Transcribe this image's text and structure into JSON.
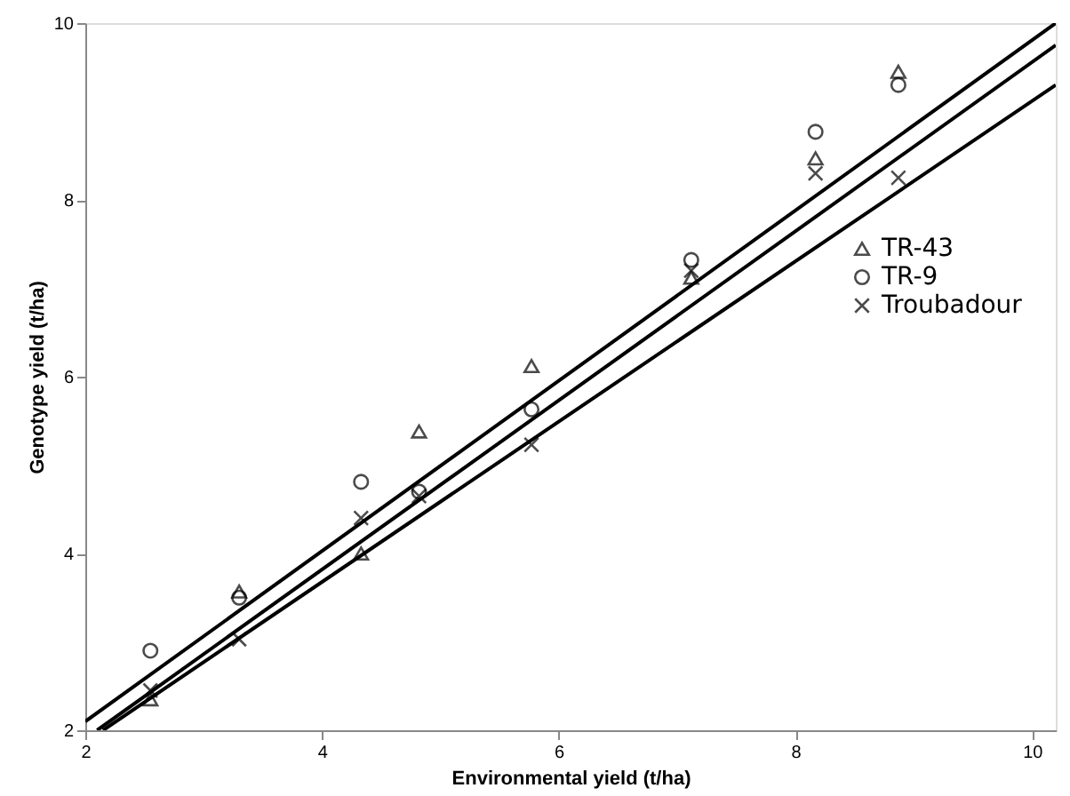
{
  "chart_data": {
    "type": "scatter",
    "xlabel": "Environmental yield (t/ha)",
    "ylabel": "Genotype yield (t/ha)",
    "x": [
      2.55,
      3.3,
      4.33,
      4.82,
      5.77,
      7.12,
      8.17,
      8.87
    ],
    "xlim": [
      2,
      10.2
    ],
    "xticks": [
      2,
      4,
      6,
      8,
      10
    ],
    "ylim": [
      2,
      10
    ],
    "yticks": [
      2,
      4,
      6,
      8,
      10
    ],
    "grid": false,
    "legend": "right",
    "series": [
      {
        "name": "TR-43",
        "color": "#000000",
        "marker": "triangle",
        "values": [
          2.35,
          3.57,
          4.0,
          5.38,
          6.12,
          7.12,
          8.47,
          9.45
        ]
      },
      {
        "name": "TR-9",
        "color": "#000000",
        "marker": "circle",
        "values": [
          2.9,
          3.5,
          4.81,
          4.7,
          5.63,
          7.32,
          8.77,
          9.3
        ]
      },
      {
        "name": "Troubadour",
        "color": "#000000",
        "marker": "cross",
        "values": [
          2.45,
          3.03,
          4.4,
          4.65,
          5.23,
          7.2,
          8.3,
          8.25
        ]
      },
      {
        "type": "line",
        "color": "#000000",
        "x": [
          2,
          10.2
        ],
        "values": [
          2.1,
          10
        ]
      },
      {
        "type": "line",
        "color": "#000000",
        "x": [
          2.1,
          10.2
        ],
        "values": [
          2.0,
          9.75
        ]
      },
      {
        "type": "line",
        "color": "#000000",
        "x": [
          2.15,
          10.2
        ],
        "values": [
          2.0,
          9.3
        ]
      }
    ]
  }
}
